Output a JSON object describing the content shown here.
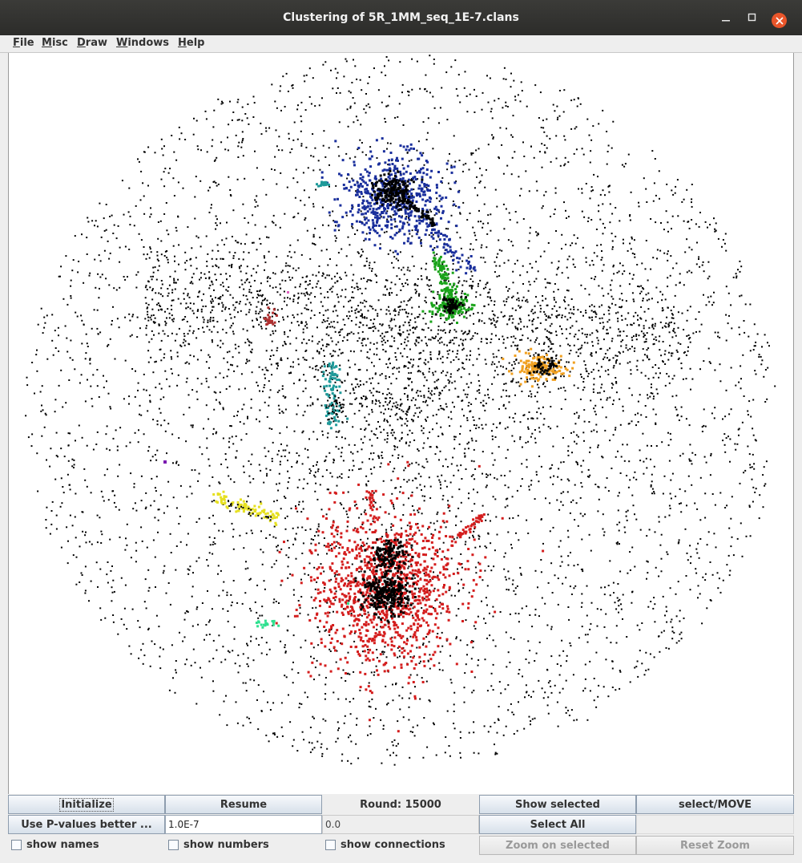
{
  "window": {
    "title": "Clustering of 5R_1MM_seq_1E-7.clans",
    "controls": {
      "minimize": "minimize-icon",
      "maximize": "maximize-icon",
      "close": "close-icon"
    }
  },
  "menu": [
    {
      "label": "File",
      "mnemonic": "F"
    },
    {
      "label": "Misc",
      "mnemonic": "M"
    },
    {
      "label": "Draw",
      "mnemonic": "D"
    },
    {
      "label": "Windows",
      "mnemonic": "W"
    },
    {
      "label": "Help",
      "mnemonic": "H"
    }
  ],
  "colors": {
    "point": "#000000",
    "blue_cluster": "#1a2f9c",
    "green_cluster": "#1aa31a",
    "orange_cluster": "#f0a020",
    "teal_cluster": "#1f9a9a",
    "red_cluster": "#d41d1d",
    "yellow_cluster": "#e6e020",
    "mint_cluster": "#30e090",
    "maroon_cluster": "#b03030",
    "purple_point": "#7a1ab0",
    "pink_point": "#e060c0"
  },
  "controls": {
    "initialize": "Initialize",
    "resume": "Resume",
    "round_text": "Round: 15000",
    "show_selected": "Show selected",
    "select_move": "select/MOVE",
    "use_pvalues": "Use P-values better ...",
    "pvalue_field": "1.0E-7",
    "readonly_value": "0.0",
    "select_all": "Select All",
    "show_names": "show names",
    "show_numbers": "show numbers",
    "show_connections": "show connections",
    "zoom_on_selected": "Zoom on selected",
    "reset_zoom": "Reset Zoom"
  }
}
